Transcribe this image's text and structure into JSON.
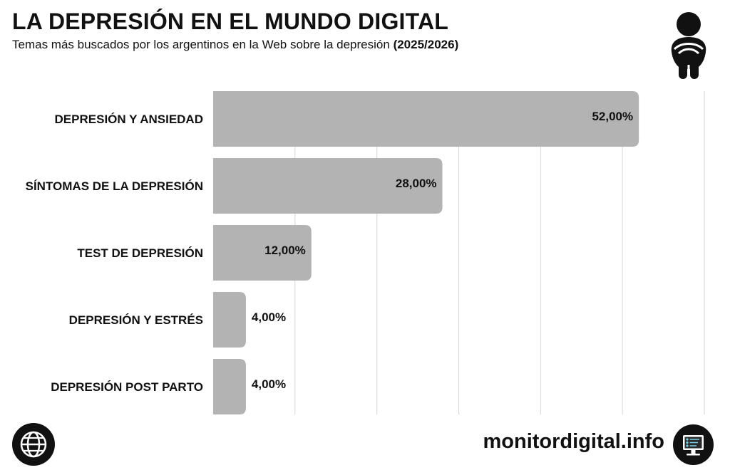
{
  "header": {
    "title": "LA DEPRESIÓN EN EL MUNDO DIGITAL",
    "subtitle": "Temas más buscados por los argentinos en la Web sobre la depresión",
    "subtitle_years": "(2025/2026)"
  },
  "chart_data": {
    "type": "bar",
    "orientation": "horizontal",
    "title": "LA DEPRESIÓN EN EL MUNDO DIGITAL",
    "categories": [
      "DEPRESIÓN Y ANSIEDAD",
      "SÍNTOMAS DE LA DEPRESIÓN",
      "TEST DE DEPRESIÓN",
      "DEPRESIÓN Y ESTRÉS",
      "DEPRESIÓN POST PARTO"
    ],
    "values": [
      52,
      28,
      12,
      4,
      4
    ],
    "value_labels": [
      "52,00%",
      "28,00%",
      "12,00%",
      "4,00%",
      "4,00%"
    ],
    "unit": "%",
    "xlim": [
      0,
      60
    ],
    "grid": true,
    "bar_color": "#b3b3b3"
  },
  "footer": {
    "brand": "monitordigital.info"
  },
  "icons": {
    "person": "person-hugging-knees-icon",
    "globe": "globe-icon",
    "monitor": "monitor-icon"
  },
  "colors": {
    "bar": "#b3b3b3",
    "grid": "#d6d6d6",
    "text": "#111111"
  }
}
